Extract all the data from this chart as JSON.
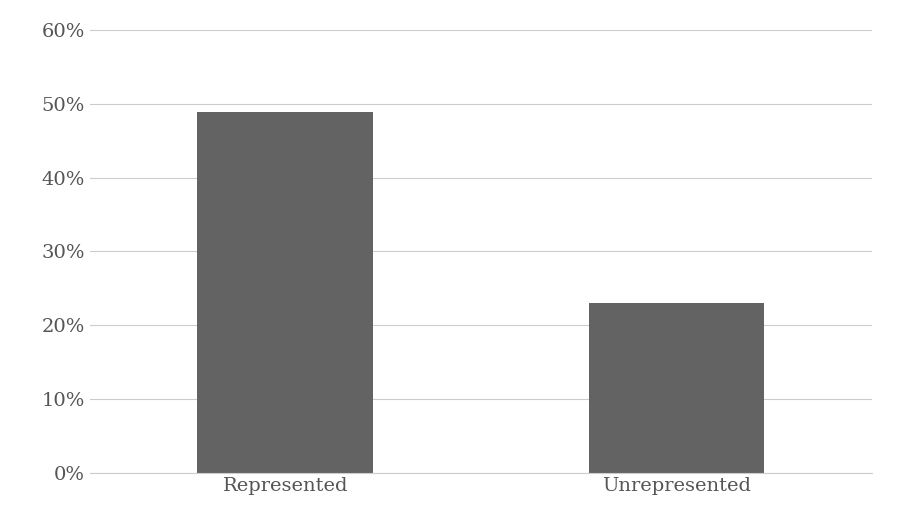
{
  "categories": [
    "Represented",
    "Unrepresented"
  ],
  "values": [
    0.49,
    0.23
  ],
  "bar_color": "#636363",
  "bar_width": 0.45,
  "ylim": [
    0,
    0.62
  ],
  "yticks": [
    0.0,
    0.1,
    0.2,
    0.3,
    0.4,
    0.5,
    0.6
  ],
  "background_color": "#ffffff",
  "grid_color": "#cccccc",
  "tick_label_fontsize": 14,
  "axis_label_color": "#555555",
  "xlim": [
    -0.5,
    1.5
  ]
}
